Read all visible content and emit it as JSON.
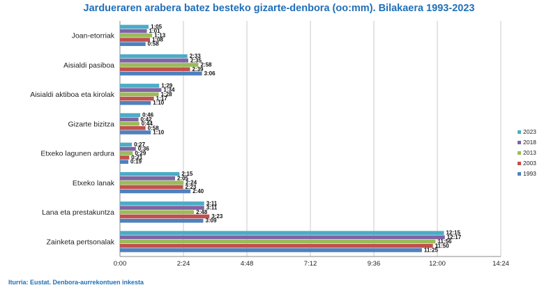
{
  "chart_data": {
    "type": "bar",
    "orientation": "horizontal",
    "title": "Jardueraren arabera batez besteko gizarte-denbora (oo:mm). Bilakaera 1993-2023",
    "source": "Iturria: Eustat. Denbora-aurrekontuen inkesta",
    "xlabel": "",
    "ylabel": "",
    "xlim_minutes": [
      0,
      864
    ],
    "x_ticks": [
      "0:00",
      "2:24",
      "4:48",
      "7:12",
      "9:36",
      "12:00",
      "14:24"
    ],
    "x_tick_minutes": [
      0,
      144,
      288,
      432,
      576,
      720,
      864
    ],
    "grid": true,
    "legend_position": "right",
    "categories": [
      "Joan-etorriak",
      "Aisialdi pasiboa",
      "Aisialdi aktiboa eta kirolak",
      "Gizarte bizitza",
      "Etxeko lagunen ardura",
      "Etxeko lanak",
      "Lana eta prestakuntza",
      "Zainketa pertsonalak"
    ],
    "series": [
      {
        "name": "2023",
        "color": "#4bacc6",
        "labels": [
          "1:05",
          "2:33",
          "1:29",
          "0:46",
          "0:27",
          "2:15",
          "3:11",
          "12:15"
        ],
        "minutes": [
          65,
          153,
          89,
          46,
          27,
          135,
          191,
          735
        ]
      },
      {
        "name": "2018",
        "color": "#8064a2",
        "labels": [
          "1:01",
          "2:35",
          "1:34",
          "0:42",
          "0:36",
          "2:05",
          "3:11",
          "12:17"
        ],
        "minutes": [
          61,
          155,
          94,
          42,
          36,
          125,
          191,
          737
        ]
      },
      {
        "name": "2013",
        "color": "#9bbb59",
        "labels": [
          "1:13",
          "2:58",
          "1:28",
          "0:44",
          "0:29",
          "2:24",
          "2:48",
          "11:56"
        ],
        "minutes": [
          73,
          178,
          88,
          44,
          29,
          144,
          168,
          716
        ]
      },
      {
        "name": "2003",
        "color": "#c0504d",
        "labels": [
          "1:08",
          "2:39",
          "1:17",
          "0:58",
          "0:21",
          "2:23",
          "3:23",
          "11:50"
        ],
        "minutes": [
          68,
          159,
          77,
          58,
          21,
          143,
          203,
          710
        ]
      },
      {
        "name": "1993",
        "color": "#4f81bd",
        "labels": [
          "0:58",
          "3:06",
          "1:10",
          "1:10",
          "0:19",
          "2:40",
          "3:09",
          "11:25"
        ],
        "minutes": [
          58,
          186,
          70,
          70,
          19,
          160,
          189,
          685
        ]
      }
    ]
  }
}
